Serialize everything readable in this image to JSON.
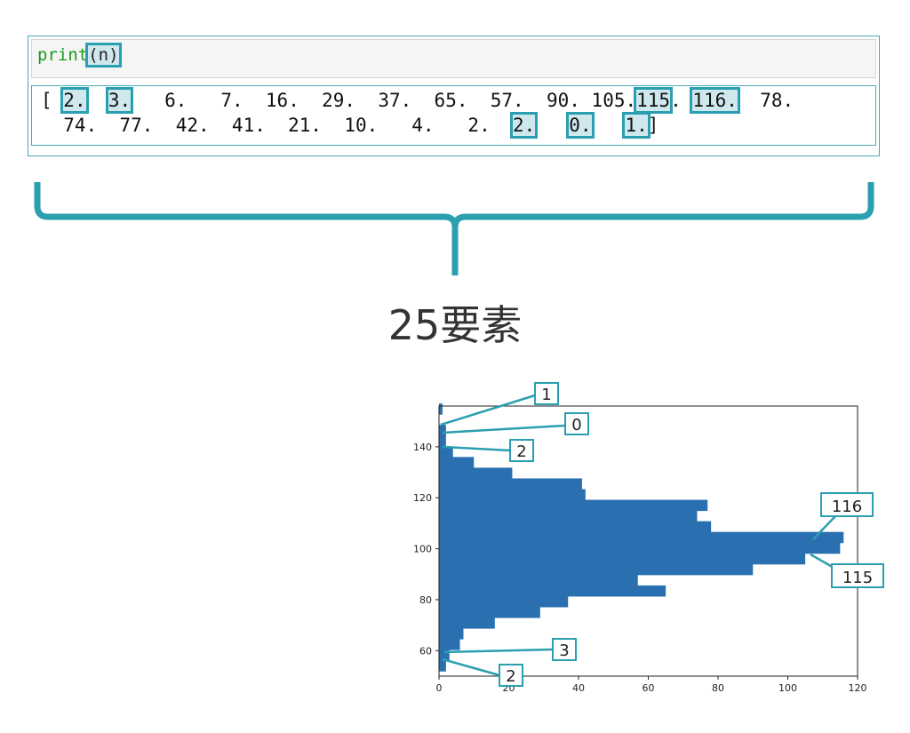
{
  "code_cell": {
    "keyword": "print",
    "argument": "(n)"
  },
  "output": {
    "line1": [
      {
        "text": "[ ",
        "hl": false
      },
      {
        "text": "2.",
        "hl": true
      },
      {
        "text": "  ",
        "hl": false
      },
      {
        "text": "3.",
        "hl": true
      },
      {
        "text": "   6.   7.  16.  29.  37.  65.  57.  90. 105.",
        "hl": false
      },
      {
        "text": "115",
        "hl": true
      },
      {
        "text": ". ",
        "hl": false
      },
      {
        "text": "116.",
        "hl": true
      },
      {
        "text": "  78.",
        "hl": false
      }
    ],
    "line2": [
      {
        "text": "  74.  77.  42.  41.  21.  10.   4.   2.  ",
        "hl": false
      },
      {
        "text": "2.",
        "hl": true
      },
      {
        "text": "   ",
        "hl": false
      },
      {
        "text": "0.",
        "hl": true
      },
      {
        "text": "   ",
        "hl": false
      },
      {
        "text": "1.",
        "hl": true
      },
      {
        "text": "]",
        "hl": false
      }
    ]
  },
  "caption": "25要素",
  "colors": {
    "accent": "#2a9fb0",
    "bar": "#2a70b0"
  },
  "chart_data": {
    "type": "bar",
    "orientation": "horizontal",
    "bin_width": 4,
    "bins_start": [
      52,
      56,
      60,
      64,
      68,
      72,
      76,
      80,
      84,
      88,
      92,
      96,
      100,
      104,
      108,
      112,
      116,
      120,
      124,
      128,
      132,
      136,
      140,
      144,
      148,
      152
    ],
    "values": [
      2,
      3,
      6,
      7,
      16,
      29,
      37,
      65,
      57,
      90,
      105,
      115,
      116,
      78,
      74,
      77,
      42,
      41,
      21,
      10,
      4,
      2,
      2,
      0,
      1
    ],
    "xlim": [
      0,
      120
    ],
    "ylim": [
      50,
      156
    ],
    "xticks": [
      "0",
      "20",
      "40",
      "60",
      "80",
      "100",
      "120"
    ],
    "yticks": [
      "60",
      "80",
      "100",
      "120",
      "140"
    ],
    "annotations": [
      "1",
      "0",
      "2",
      "116",
      "115",
      "3",
      "2"
    ]
  }
}
